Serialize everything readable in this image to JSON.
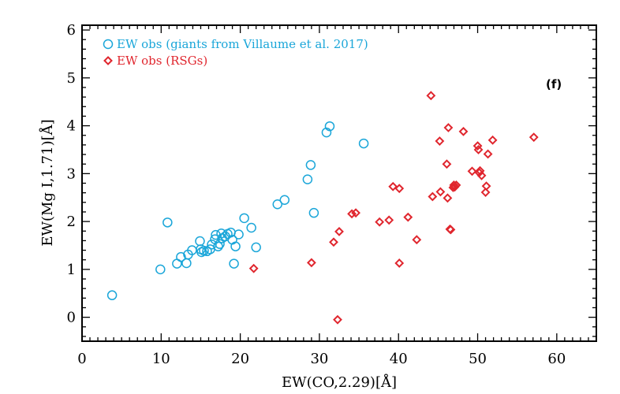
{
  "chart_data": {
    "type": "scatter",
    "xlabel": "EW(CO,2.29)[Å]",
    "ylabel": "EW(Mg I,1.71)[Å]",
    "xlim": [
      0,
      65
    ],
    "ylim": [
      -0.5,
      6.1
    ],
    "xticks": [
      "0",
      "10",
      "20",
      "30",
      "40",
      "50",
      "60"
    ],
    "yticks": [
      "0",
      "1",
      "2",
      "3",
      "4",
      "5",
      "6"
    ],
    "annotation": "(f)",
    "legend_position": "top-left",
    "series": [
      {
        "name": "EW obs (giants from Villaume et al. 2017)",
        "marker": "circle",
        "color": "#1aa6d9",
        "points": [
          [
            3.8,
            0.46
          ],
          [
            9.9,
            1.0
          ],
          [
            10.8,
            1.98
          ],
          [
            12.0,
            1.12
          ],
          [
            12.5,
            1.26
          ],
          [
            13.2,
            1.13
          ],
          [
            13.4,
            1.31
          ],
          [
            13.9,
            1.4
          ],
          [
            14.9,
            1.59
          ],
          [
            15.0,
            1.42
          ],
          [
            15.1,
            1.36
          ],
          [
            15.4,
            1.39
          ],
          [
            15.8,
            1.38
          ],
          [
            16.2,
            1.42
          ],
          [
            16.4,
            1.52
          ],
          [
            16.8,
            1.63
          ],
          [
            16.9,
            1.72
          ],
          [
            17.2,
            1.48
          ],
          [
            17.4,
            1.53
          ],
          [
            17.6,
            1.75
          ],
          [
            17.7,
            1.65
          ],
          [
            18.1,
            1.69
          ],
          [
            18.4,
            1.74
          ],
          [
            18.8,
            1.77
          ],
          [
            19.0,
            1.62
          ],
          [
            19.2,
            1.12
          ],
          [
            19.4,
            1.48
          ],
          [
            19.8,
            1.73
          ],
          [
            20.5,
            2.07
          ],
          [
            21.4,
            1.87
          ],
          [
            22.0,
            1.46
          ],
          [
            24.7,
            2.36
          ],
          [
            25.6,
            2.45
          ],
          [
            28.5,
            2.88
          ],
          [
            28.9,
            3.18
          ],
          [
            29.3,
            2.18
          ],
          [
            30.9,
            3.86
          ],
          [
            31.3,
            3.99
          ],
          [
            35.6,
            3.63
          ]
        ]
      },
      {
        "name": "EW obs (RSGs)",
        "marker": "diamond",
        "color": "#e0262e",
        "points": [
          [
            21.7,
            1.02
          ],
          [
            29.0,
            1.14
          ],
          [
            31.8,
            1.57
          ],
          [
            32.3,
            -0.05
          ],
          [
            32.5,
            1.79
          ],
          [
            34.1,
            2.16
          ],
          [
            34.6,
            2.18
          ],
          [
            37.6,
            1.99
          ],
          [
            38.8,
            2.03
          ],
          [
            39.3,
            2.73
          ],
          [
            40.1,
            2.69
          ],
          [
            40.1,
            1.13
          ],
          [
            41.2,
            2.09
          ],
          [
            42.3,
            1.62
          ],
          [
            44.1,
            4.63
          ],
          [
            44.3,
            2.52
          ],
          [
            45.2,
            3.68
          ],
          [
            45.3,
            2.62
          ],
          [
            46.1,
            3.2
          ],
          [
            46.2,
            2.49
          ],
          [
            46.3,
            3.96
          ],
          [
            46.5,
            1.84
          ],
          [
            46.6,
            1.83
          ],
          [
            46.9,
            2.71
          ],
          [
            47.0,
            2.76
          ],
          [
            47.1,
            2.72
          ],
          [
            47.3,
            2.76
          ],
          [
            48.2,
            3.88
          ],
          [
            49.3,
            3.05
          ],
          [
            50.0,
            3.58
          ],
          [
            50.1,
            3.5
          ],
          [
            50.2,
            3.02
          ],
          [
            50.3,
            3.06
          ],
          [
            50.5,
            2.96
          ],
          [
            51.0,
            2.61
          ],
          [
            51.1,
            2.74
          ],
          [
            51.3,
            3.41
          ],
          [
            51.9,
            3.7
          ],
          [
            57.1,
            3.76
          ]
        ]
      }
    ]
  }
}
